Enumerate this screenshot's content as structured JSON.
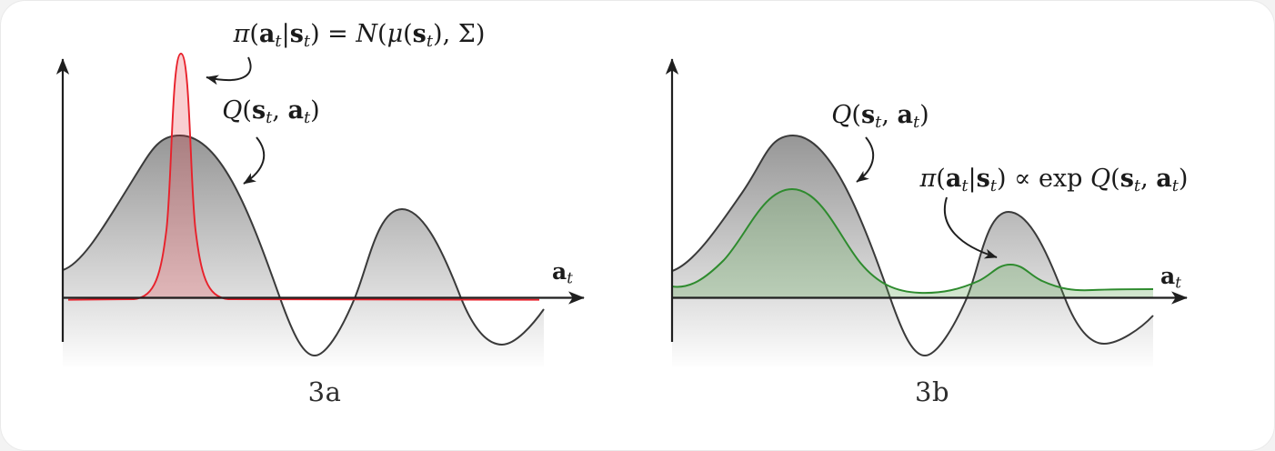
{
  "figure": {
    "colors": {
      "curve_stroke": "#3a3a3a",
      "axis_color": "#1f1f1f",
      "text_color": "#1b1b1b",
      "policy_red_stroke": "#e8212b",
      "policy_red_fill": "#e8353f",
      "policy_green_stroke": "#2e8b2e",
      "policy_green_fill": "#5aa050",
      "q_fill_top": "#949494",
      "q_fill_bottom": "#ffffff"
    },
    "panels": [
      {
        "id": "3a",
        "caption": "3a",
        "axis_label": [
          {
            "t": "a",
            "b": true
          },
          {
            "t": "t",
            "sub": true
          }
        ],
        "policy_label": [
          {
            "t": "π",
            "i": true
          },
          {
            "t": "("
          },
          {
            "t": "a",
            "b": true
          },
          {
            "t": "t",
            "sub": true
          },
          {
            "t": "|"
          },
          {
            "t": "s",
            "b": true
          },
          {
            "t": "t",
            "sub": true
          },
          {
            "t": ") = "
          },
          {
            "t": "N",
            "cal": true
          },
          {
            "t": "("
          },
          {
            "t": "μ",
            "i": true
          },
          {
            "t": "("
          },
          {
            "t": "s",
            "b": true
          },
          {
            "t": "t",
            "sub": true
          },
          {
            "t": "), Σ)"
          }
        ],
        "q_label": [
          {
            "t": "Q",
            "i": true
          },
          {
            "t": "("
          },
          {
            "t": "s",
            "b": true
          },
          {
            "t": "t",
            "sub": true
          },
          {
            "t": ", "
          },
          {
            "t": "a",
            "b": true
          },
          {
            "t": "t",
            "sub": true
          },
          {
            "t": ")"
          }
        ]
      },
      {
        "id": "3b",
        "caption": "3b",
        "axis_label": [
          {
            "t": "a",
            "b": true
          },
          {
            "t": "t",
            "sub": true
          }
        ],
        "q_label": [
          {
            "t": "Q",
            "i": true
          },
          {
            "t": "("
          },
          {
            "t": "s",
            "b": true
          },
          {
            "t": "t",
            "sub": true
          },
          {
            "t": ", "
          },
          {
            "t": "a",
            "b": true
          },
          {
            "t": "t",
            "sub": true
          },
          {
            "t": ")"
          }
        ],
        "policy_label": [
          {
            "t": "π",
            "i": true
          },
          {
            "t": "("
          },
          {
            "t": "a",
            "b": true
          },
          {
            "t": "t",
            "sub": true
          },
          {
            "t": "|"
          },
          {
            "t": "s",
            "b": true
          },
          {
            "t": "t",
            "sub": true
          },
          {
            "t": ") ∝ exp "
          },
          {
            "t": "Q",
            "i": true
          },
          {
            "t": "("
          },
          {
            "t": "s",
            "b": true
          },
          {
            "t": "t",
            "sub": true
          },
          {
            "t": ", "
          },
          {
            "t": "a",
            "b": true
          },
          {
            "t": "t",
            "sub": true
          },
          {
            "t": ")"
          }
        ]
      }
    ]
  }
}
